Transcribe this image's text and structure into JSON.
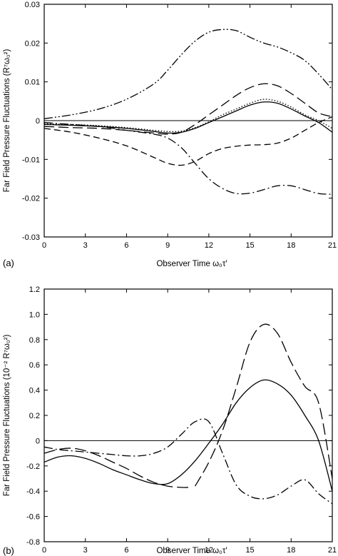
{
  "chart_data": [
    {
      "type": "line",
      "panel_label": "(a)",
      "xlabel": "Observer Time  ω₀τ′",
      "ylabel": "Far Field Pressure Fluctuations (R⁷ω₀²)",
      "xlim": [
        0,
        21
      ],
      "ylim": [
        -0.03,
        0.03
      ],
      "xticks": [
        0,
        3,
        6,
        9,
        12,
        15,
        18,
        21
      ],
      "yticks": [
        -0.03,
        -0.02,
        -0.01,
        0,
        0.01,
        0.02,
        0.03
      ],
      "ytick_labels": [
        "-0.03",
        "-0.02",
        "-0.01",
        "0",
        "0.01",
        "0.02",
        "0.03"
      ],
      "zero_line": true,
      "series": [
        {
          "style": "solid",
          "x": [
            0,
            2,
            4,
            6,
            8,
            9,
            10,
            11,
            12,
            13,
            14,
            15,
            16,
            17,
            18,
            19,
            20,
            21
          ],
          "y": [
            -0.001,
            -0.0012,
            -0.0015,
            -0.002,
            -0.0028,
            -0.0032,
            -0.003,
            -0.002,
            -0.0005,
            0.001,
            0.0025,
            0.004,
            0.0048,
            0.0045,
            0.003,
            0.0012,
            -0.0005,
            -0.003
          ]
        },
        {
          "style": "dotted",
          "x": [
            0,
            2,
            4,
            6,
            8,
            9,
            10,
            11,
            12,
            13,
            14,
            15,
            16,
            17,
            18,
            19,
            20,
            21
          ],
          "y": [
            -0.0008,
            -0.001,
            -0.0013,
            -0.0018,
            -0.0025,
            -0.0028,
            -0.0027,
            -0.0018,
            -0.0003,
            0.0015,
            0.003,
            0.0045,
            0.0055,
            0.005,
            0.0035,
            0.0015,
            0,
            -0.002
          ]
        },
        {
          "style": "long-dash",
          "x": [
            0,
            2,
            4,
            6,
            8,
            9,
            10,
            11,
            12,
            13,
            14,
            15,
            16,
            17,
            18,
            19,
            20,
            21
          ],
          "y": [
            -0.0015,
            -0.0018,
            -0.002,
            -0.0025,
            -0.0032,
            -0.0035,
            -0.003,
            -0.001,
            0.0015,
            0.004,
            0.0065,
            0.0085,
            0.0095,
            0.009,
            0.007,
            0.0045,
            0.002,
            0.001
          ]
        },
        {
          "style": "short-dash",
          "x": [
            0,
            2,
            4,
            6,
            8,
            9,
            10,
            11,
            12,
            13,
            14,
            15,
            16,
            17,
            18,
            19,
            20,
            21
          ],
          "y": [
            -0.002,
            -0.003,
            -0.0045,
            -0.0065,
            -0.0095,
            -0.011,
            -0.0115,
            -0.0105,
            -0.0085,
            -0.0072,
            -0.0066,
            -0.0063,
            -0.0062,
            -0.0058,
            -0.0045,
            -0.0025,
            -0.0005,
            0.001
          ]
        },
        {
          "style": "dash-dot",
          "x": [
            0,
            2,
            4,
            6,
            8,
            9,
            10,
            11,
            12,
            13,
            14,
            15,
            16,
            17,
            18,
            19,
            20,
            21
          ],
          "y": [
            -0.0005,
            -0.001,
            -0.0015,
            -0.0025,
            -0.0035,
            -0.0045,
            -0.007,
            -0.011,
            -0.015,
            -0.0175,
            -0.0188,
            -0.0187,
            -0.0178,
            -0.0168,
            -0.0168,
            -0.0178,
            -0.0188,
            -0.019
          ]
        },
        {
          "style": "dash-dot-dot",
          "x": [
            0,
            2,
            4,
            6,
            8,
            9,
            10,
            11,
            12,
            13,
            14,
            15,
            16,
            17,
            18,
            19,
            20,
            21
          ],
          "y": [
            0.0005,
            0.0015,
            0.003,
            0.0055,
            0.0095,
            0.013,
            0.017,
            0.0205,
            0.0228,
            0.0235,
            0.0232,
            0.0215,
            0.02,
            0.019,
            0.0175,
            0.0155,
            0.012,
            0.008
          ]
        }
      ]
    },
    {
      "type": "line",
      "panel_label": "(b)",
      "xlabel": "Observer Time  ω₀τ′",
      "ylabel": "Far Field Pressure Fluctuations  (10⁻² R⁷ω₀²)",
      "xlim": [
        0,
        21
      ],
      "ylim": [
        -0.8,
        1.2
      ],
      "xticks": [
        0,
        3,
        6,
        9,
        12,
        15,
        18,
        21
      ],
      "yticks": [
        -0.8,
        -0.6,
        -0.4,
        -0.2,
        0,
        0.2,
        0.4,
        0.6,
        0.8,
        1.0,
        1.2
      ],
      "ytick_labels": [
        "-0.8",
        "-0.6",
        "-0.4",
        "-0.2",
        "0",
        "0.2",
        "0.4",
        "0.6",
        "0.8",
        "1.0",
        "1.2"
      ],
      "zero_line": true,
      "series": [
        {
          "style": "solid",
          "x": [
            0,
            1,
            2,
            3,
            4,
            5,
            6,
            7,
            8,
            9,
            10,
            11,
            12,
            13,
            14,
            15,
            16,
            17,
            18,
            19,
            20,
            21
          ],
          "y": [
            -0.17,
            -0.13,
            -0.12,
            -0.14,
            -0.18,
            -0.23,
            -0.27,
            -0.31,
            -0.34,
            -0.34,
            -0.27,
            -0.16,
            -0.02,
            0.13,
            0.3,
            0.42,
            0.48,
            0.45,
            0.36,
            0.2,
            0.0,
            -0.4
          ]
        },
        {
          "style": "dash-dot",
          "x": [
            0,
            1,
            2,
            3,
            4,
            5,
            6,
            7,
            8,
            9,
            10,
            11,
            12,
            13,
            14,
            15,
            16,
            17,
            18,
            19,
            20,
            21
          ],
          "y": [
            -0.05,
            -0.07,
            -0.08,
            -0.09,
            -0.1,
            -0.11,
            -0.12,
            -0.12,
            -0.1,
            -0.05,
            0.05,
            0.15,
            0.15,
            -0.1,
            -0.35,
            -0.44,
            -0.46,
            -0.43,
            -0.36,
            -0.31,
            -0.42,
            -0.5
          ]
        },
        {
          "style": "long-dash-1",
          "x": [
            0,
            1,
            2,
            3,
            4,
            5,
            6,
            7,
            8,
            9,
            10,
            10.5
          ],
          "y": [
            -0.1,
            -0.07,
            -0.06,
            -0.08,
            -0.12,
            -0.17,
            -0.22,
            -0.28,
            -0.33,
            -0.36,
            -0.37,
            -0.37
          ]
        },
        {
          "style": "long-dash-2",
          "x": [
            11,
            12,
            13,
            14,
            15,
            16,
            17,
            18,
            19,
            20,
            21
          ],
          "y": [
            -0.36,
            -0.17,
            0.08,
            0.42,
            0.78,
            0.92,
            0.85,
            0.62,
            0.43,
            0.3,
            -0.3
          ]
        }
      ]
    }
  ]
}
